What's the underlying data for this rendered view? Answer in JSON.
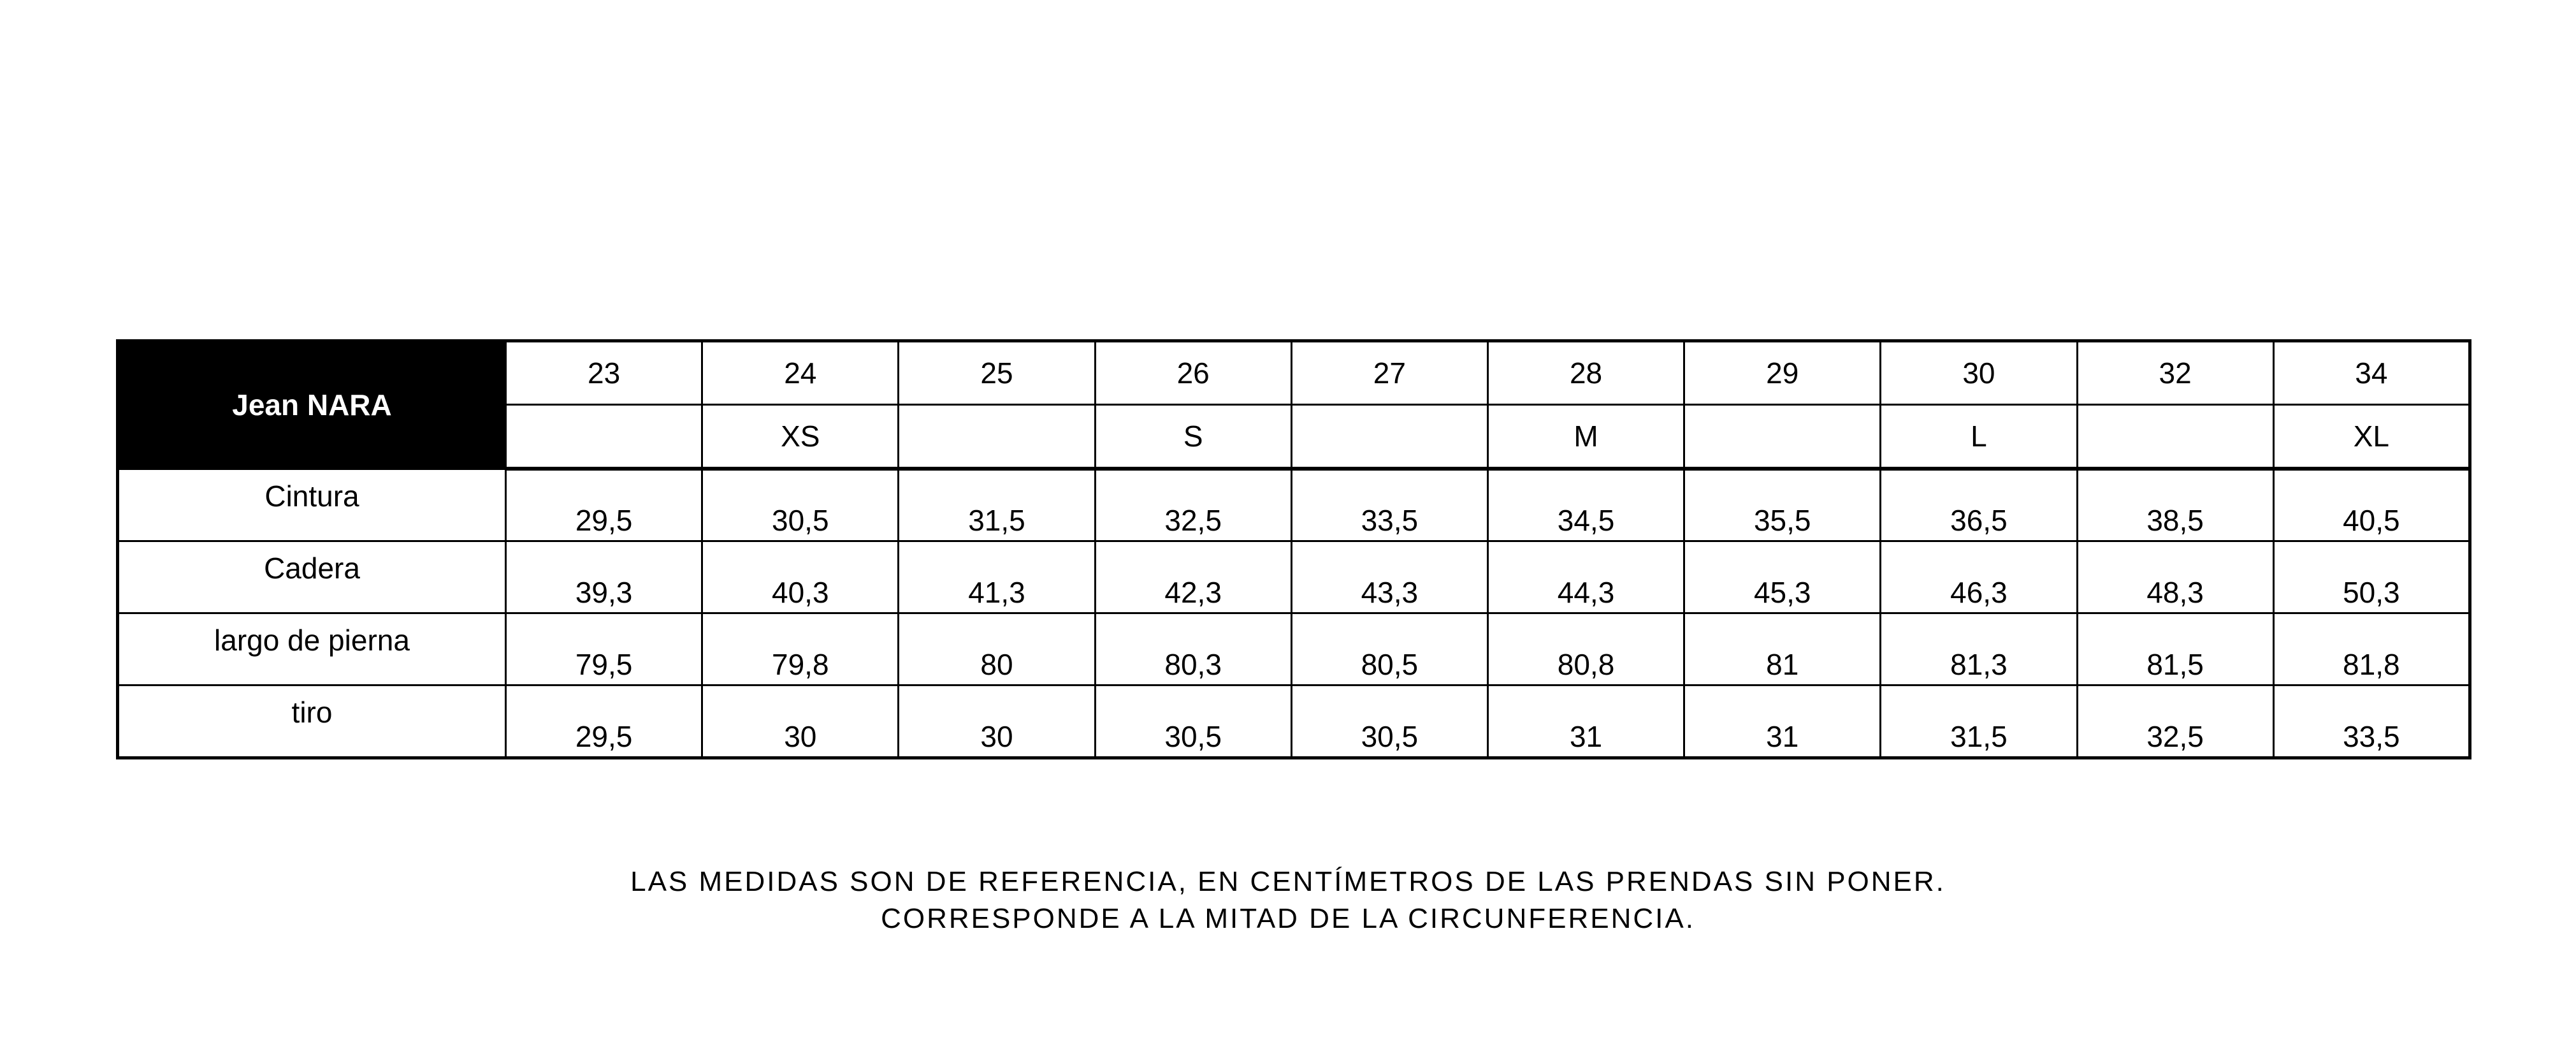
{
  "table": {
    "title": "Jean NARA",
    "sizes": [
      "23",
      "24",
      "25",
      "26",
      "27",
      "28",
      "29",
      "30",
      "32",
      "34"
    ],
    "letters": [
      "",
      "XS",
      "",
      "S",
      "",
      "M",
      "",
      "L",
      "",
      "XL"
    ],
    "rows": [
      {
        "label": "Cintura",
        "values": [
          "29,5",
          "30,5",
          "31,5",
          "32,5",
          "33,5",
          "34,5",
          "35,5",
          "36,5",
          "38,5",
          "40,5"
        ]
      },
      {
        "label": "Cadera",
        "values": [
          "39,3",
          "40,3",
          "41,3",
          "42,3",
          "43,3",
          "44,3",
          "45,3",
          "46,3",
          "48,3",
          "50,3"
        ]
      },
      {
        "label": "largo de pierna",
        "values": [
          "79,5",
          "79,8",
          "80",
          "80,3",
          "80,5",
          "80,8",
          "81",
          "81,3",
          "81,5",
          "81,8"
        ]
      },
      {
        "label": "tiro",
        "values": [
          "29,5",
          "30",
          "30",
          "30,5",
          "30,5",
          "31",
          "31",
          "31,5",
          "32,5",
          "33,5"
        ]
      }
    ]
  },
  "notes": {
    "line1": "LAS MEDIDAS SON DE REFERENCIA, EN CENTÍMETROS DE LAS PRENDAS SIN PONER.",
    "line2": "CORRESPONDE A LA MITAD DE LA CIRCUNFERENCIA."
  }
}
